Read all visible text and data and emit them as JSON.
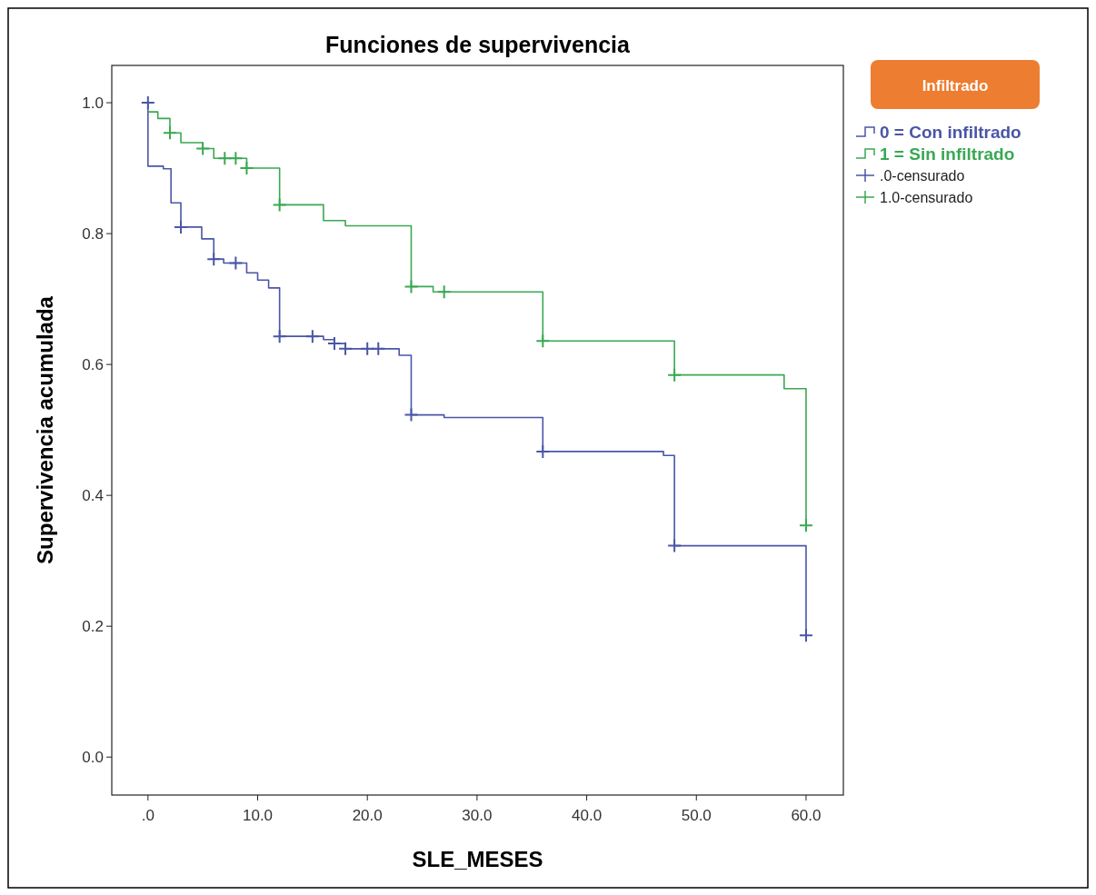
{
  "chart_data": {
    "type": "step",
    "title": "Funciones de supervivencia",
    "xlabel": "SLE_MESES",
    "ylabel": "Supervivencia acumulada",
    "legend_title": "Infiltrado",
    "legend": "top right",
    "xlim": [
      -3.3,
      63.4
    ],
    "ylim": [
      -0.058,
      1.057
    ],
    "xticks": [
      {
        "value": 0,
        "label": ".0"
      },
      {
        "value": 10,
        "label": "10.0"
      },
      {
        "value": 20,
        "label": "20.0"
      },
      {
        "value": 30,
        "label": "30.0"
      },
      {
        "value": 40,
        "label": "40.0"
      },
      {
        "value": 50,
        "label": "50.0"
      },
      {
        "value": 60,
        "label": "60.0"
      }
    ],
    "yticks": [
      {
        "value": 0,
        "label": "0.0"
      },
      {
        "value": 0.2,
        "label": "0.2"
      },
      {
        "value": 0.4,
        "label": "0.4"
      },
      {
        "value": 0.6,
        "label": "0.6"
      },
      {
        "value": 0.8,
        "label": "0.8"
      },
      {
        "value": 1,
        "label": "1.0"
      }
    ],
    "series": [
      {
        "name": "0 = Con infiltrado",
        "color": "#4a56a6",
        "x": [
          0,
          0,
          1.4,
          2.1,
          3,
          4.9,
          6,
          6.9,
          9,
          10,
          11,
          12,
          16,
          17,
          18,
          22.9,
          24,
          27,
          36,
          47,
          48,
          60
        ],
        "values": [
          1.0,
          0.903,
          0.899,
          0.847,
          0.81,
          0.792,
          0.761,
          0.755,
          0.74,
          0.729,
          0.717,
          0.643,
          0.638,
          0.632,
          0.624,
          0.614,
          0.523,
          0.519,
          0.467,
          0.461,
          0.323,
          0.186
        ]
      },
      {
        "name": "1 = Sin infiltrado",
        "color": "#3aa852",
        "x": [
          0,
          0.9,
          2,
          3,
          5,
          6,
          9,
          12,
          16,
          18,
          24,
          26,
          36,
          48,
          58,
          60
        ],
        "values": [
          0.986,
          0.976,
          0.954,
          0.939,
          0.93,
          0.915,
          0.9,
          0.844,
          0.82,
          0.812,
          0.719,
          0.711,
          0.636,
          0.584,
          0.563,
          0.354
        ]
      },
      {
        "name": ".0-censurado",
        "type": "scatter",
        "marker": "cross",
        "color": "#4a56a6",
        "x": [
          0,
          3,
          6,
          8,
          12,
          15,
          17,
          18,
          20,
          21,
          24,
          36,
          48,
          60
        ],
        "values": [
          1.0,
          0.81,
          0.761,
          0.755,
          0.643,
          0.643,
          0.632,
          0.624,
          0.624,
          0.624,
          0.523,
          0.467,
          0.323,
          0.186
        ]
      },
      {
        "name": "1.0-censurado",
        "type": "scatter",
        "marker": "cross",
        "color": "#3aa852",
        "x": [
          2,
          5,
          7,
          8,
          9,
          12,
          24,
          27,
          36,
          48,
          60
        ],
        "values": [
          0.954,
          0.93,
          0.915,
          0.915,
          0.9,
          0.844,
          0.719,
          0.711,
          0.636,
          0.584,
          0.354
        ]
      }
    ]
  }
}
